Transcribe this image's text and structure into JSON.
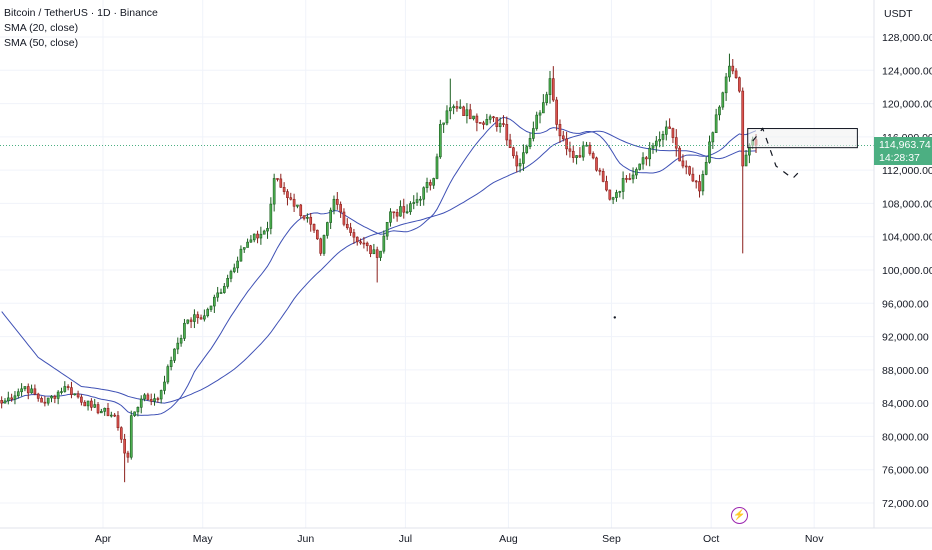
{
  "header": {
    "title": "Bitcoin / TetherUS · 1D · Binance",
    "indicators": [
      "SMA (20, close)",
      "SMA (50, close)"
    ]
  },
  "currency": "USDT",
  "last_price": "114,963.74",
  "countdown": "14:28:37",
  "event_icon": "lightning-bolt-icon",
  "colors": {
    "up": "#26a69a",
    "down": "#ef5350",
    "up_body": "#4caf50",
    "down_body": "#d9534f",
    "sma": "#3f51b5",
    "price_line": "#4caf82"
  },
  "chart_data": {
    "type": "candlestick",
    "symbol": "Bitcoin / TetherUS",
    "interval": "1D",
    "exchange": "Binance",
    "y_range": [
      70000,
      130000
    ],
    "y_ticks": [
      128000,
      124000,
      120000,
      116000,
      112000,
      108000,
      104000,
      100000,
      96000,
      92000,
      88000,
      84000,
      80000,
      76000,
      72000
    ],
    "y_tick_labels": [
      "128,000.00",
      "124,000.00",
      "120,000.00",
      "116,000.00",
      "112,000.00",
      "108,000.00",
      "104,000.00",
      "100,000.00",
      "96,000.00",
      "92,000.00",
      "88,000.00",
      "84,000.00",
      "80,000.00",
      "76,000.00",
      "72,000.00"
    ],
    "x_start_date": "2025-03-01",
    "x_end_date": "2025-11-19",
    "x_ticks": [
      {
        "date": "2025-04-01",
        "label": "Apr"
      },
      {
        "date": "2025-05-01",
        "label": "May"
      },
      {
        "date": "2025-06-01",
        "label": "Jun"
      },
      {
        "date": "2025-07-01",
        "label": "Jul"
      },
      {
        "date": "2025-08-01",
        "label": "Aug"
      },
      {
        "date": "2025-09-01",
        "label": "Sep"
      },
      {
        "date": "2025-10-01",
        "label": "Oct"
      },
      {
        "date": "2025-11-01",
        "label": "Nov"
      }
    ],
    "last_price": 114963.74,
    "close_anchors": [
      [
        "2025-03-01",
        84000
      ],
      [
        "2025-03-08",
        86000
      ],
      [
        "2025-03-14",
        84000
      ],
      [
        "2025-03-20",
        86000
      ],
      [
        "2025-03-28",
        83500
      ],
      [
        "2025-04-04",
        82500
      ],
      [
        "2025-04-07",
        78000
      ],
      [
        "2025-04-08",
        77500
      ],
      [
        "2025-04-09",
        82500
      ],
      [
        "2025-04-12",
        84500
      ],
      [
        "2025-04-17",
        84500
      ],
      [
        "2025-04-22",
        90500
      ],
      [
        "2025-04-26",
        94000
      ],
      [
        "2025-05-01",
        94500
      ],
      [
        "2025-05-08",
        99000
      ],
      [
        "2025-05-12",
        102500
      ],
      [
        "2025-05-20",
        105000
      ],
      [
        "2025-05-22",
        111000
      ],
      [
        "2025-05-27",
        108500
      ],
      [
        "2025-06-02",
        105500
      ],
      [
        "2025-06-05",
        102000
      ],
      [
        "2025-06-09",
        108500
      ],
      [
        "2025-06-14",
        104500
      ],
      [
        "2025-06-22",
        101500
      ],
      [
        "2025-06-26",
        107000
      ],
      [
        "2025-07-01",
        107000
      ],
      [
        "2025-07-09",
        111000
      ],
      [
        "2025-07-11",
        117500
      ],
      [
        "2025-07-14",
        119500
      ],
      [
        "2025-07-21",
        118500
      ],
      [
        "2025-07-30",
        117500
      ],
      [
        "2025-08-03",
        112500
      ],
      [
        "2025-08-08",
        117000
      ],
      [
        "2025-08-13",
        123000
      ],
      [
        "2025-08-15",
        117500
      ],
      [
        "2025-08-20",
        113500
      ],
      [
        "2025-08-24",
        115000
      ],
      [
        "2025-08-31",
        108500
      ],
      [
        "2025-09-05",
        111000
      ],
      [
        "2025-09-10",
        113500
      ],
      [
        "2025-09-14",
        115500
      ],
      [
        "2025-09-18",
        117000
      ],
      [
        "2025-09-22",
        112500
      ],
      [
        "2025-09-27",
        109500
      ],
      [
        "2025-10-01",
        116500
      ],
      [
        "2025-10-06",
        124500
      ],
      [
        "2025-10-09",
        121500
      ],
      [
        "2025-10-10",
        112500
      ],
      [
        "2025-10-12",
        115000
      ],
      [
        "2025-10-14",
        114963.74
      ]
    ],
    "wick_extremes": [
      {
        "date": "2025-04-07",
        "low": 74500
      },
      {
        "date": "2025-06-22",
        "low": 98500
      },
      {
        "date": "2025-07-14",
        "high": 123000
      },
      {
        "date": "2025-08-14",
        "high": 124500
      },
      {
        "date": "2025-10-06",
        "high": 126000
      },
      {
        "date": "2025-10-10",
        "low": 102000
      }
    ],
    "series": [
      {
        "name": "SMA (20, close)",
        "color": "#3f51b5",
        "window": 20
      },
      {
        "name": "SMA (50, close)",
        "color": "#3f51b5",
        "window": 50
      }
    ],
    "sma50_start_anchors": [
      [
        "2025-03-01",
        95000
      ],
      [
        "2025-03-12",
        89500
      ],
      [
        "2025-03-25",
        86000
      ]
    ],
    "drawings": {
      "rectangle": {
        "from": "2025-10-12",
        "to": "2025-11-14",
        "low": 114700,
        "high": 117000
      },
      "projection_path": [
        [
          "2025-10-13",
          115500
        ],
        [
          "2025-10-16",
          117000
        ],
        [
          "2025-10-20",
          112500
        ],
        [
          "2025-10-25",
          111000
        ],
        [
          "2025-10-27",
          111800
        ]
      ],
      "dot": {
        "date": "2025-09-02",
        "value": 94300
      }
    }
  }
}
